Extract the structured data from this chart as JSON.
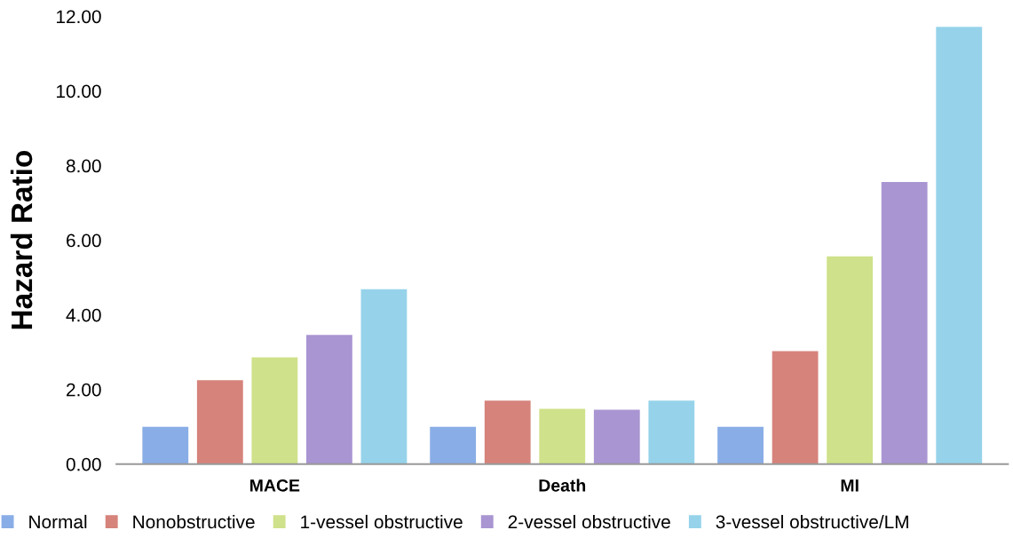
{
  "chart_data": {
    "type": "bar",
    "ylabel": "Hazard Ratio",
    "categories": [
      "MACE",
      "Death",
      "MI"
    ],
    "series": [
      {
        "name": "Normal",
        "color": "#89ade6",
        "values": [
          1.0,
          1.0,
          1.0
        ]
      },
      {
        "name": "Nonobstructive",
        "color": "#d6837b",
        "values": [
          2.25,
          1.7,
          3.03
        ]
      },
      {
        "name": "1-vessel obstructive",
        "color": "#cfe18a",
        "values": [
          2.86,
          1.48,
          5.57
        ]
      },
      {
        "name": "2-vessel obstructive",
        "color": "#a995d2",
        "values": [
          3.46,
          1.46,
          7.56
        ]
      },
      {
        "name": "3-vessel obstructive/LM",
        "color": "#96d3ea",
        "values": [
          4.69,
          1.7,
          11.72
        ]
      }
    ],
    "ylim": [
      0,
      12
    ],
    "yticks": [
      {
        "value": 0,
        "label": "0.00"
      },
      {
        "value": 2,
        "label": "2.00"
      },
      {
        "value": 4,
        "label": "4.00"
      },
      {
        "value": 6,
        "label": "6.00"
      },
      {
        "value": 8,
        "label": "8.00"
      },
      {
        "value": 10,
        "label": "10.00"
      },
      {
        "value": 12,
        "label": "12.00"
      }
    ],
    "grid": false,
    "legend": "bottom"
  }
}
